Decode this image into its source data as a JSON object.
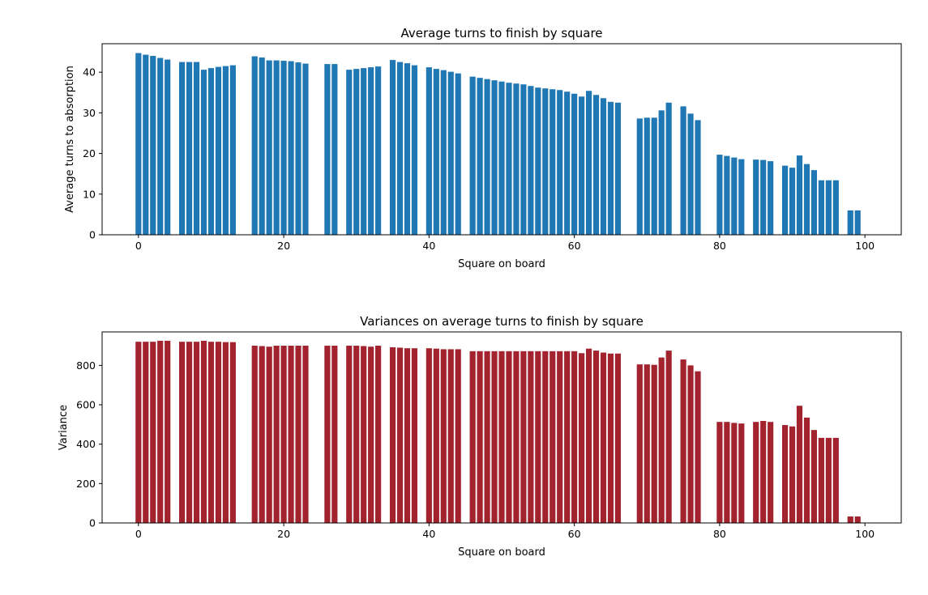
{
  "chart_data": [
    {
      "type": "bar",
      "title": "Average turns to finish by square",
      "xlabel": "Square on board",
      "ylabel": "Average turns to absorption",
      "xlim": [
        -5,
        105
      ],
      "ylim": [
        0,
        47
      ],
      "xticks": [
        0,
        20,
        40,
        60,
        80,
        100
      ],
      "yticks": [
        0,
        10,
        20,
        30,
        40
      ],
      "grid": false,
      "color": "#1f77b4",
      "x": [
        0,
        1,
        2,
        3,
        4,
        6,
        7,
        8,
        9,
        10,
        11,
        12,
        13,
        16,
        17,
        18,
        19,
        20,
        21,
        22,
        23,
        26,
        27,
        29,
        30,
        31,
        32,
        33,
        35,
        36,
        37,
        38,
        40,
        41,
        42,
        43,
        44,
        46,
        47,
        48,
        49,
        50,
        51,
        52,
        53,
        54,
        55,
        56,
        57,
        58,
        59,
        60,
        61,
        62,
        63,
        64,
        65,
        66,
        69,
        70,
        71,
        72,
        73,
        75,
        76,
        77,
        80,
        81,
        82,
        83,
        85,
        86,
        87,
        89,
        90,
        91,
        92,
        93,
        94,
        95,
        96,
        98,
        99
      ],
      "values": [
        44.7,
        44.3,
        44.0,
        43.5,
        43.1,
        42.5,
        42.5,
        42.5,
        40.6,
        41.0,
        41.3,
        41.5,
        41.7,
        43.9,
        43.6,
        42.9,
        42.9,
        42.8,
        42.7,
        42.4,
        42.1,
        42.0,
        42.0,
        40.6,
        40.8,
        41.0,
        41.2,
        41.4,
        43.0,
        42.5,
        42.2,
        41.7,
        41.2,
        40.8,
        40.5,
        40.1,
        39.7,
        38.9,
        38.6,
        38.3,
        38.0,
        37.7,
        37.4,
        37.2,
        37.0,
        36.6,
        36.2,
        36.0,
        35.8,
        35.6,
        35.2,
        34.7,
        34.0,
        35.4,
        34.4,
        33.6,
        32.7,
        32.5,
        28.6,
        28.8,
        28.8,
        30.6,
        32.5,
        31.6,
        29.8,
        28.2,
        19.7,
        19.4,
        19.0,
        18.6,
        18.5,
        18.4,
        18.1,
        17.0,
        16.5,
        19.5,
        17.4,
        15.9,
        13.4,
        13.4,
        13.4,
        6.0,
        6.0
      ]
    },
    {
      "type": "bar",
      "title": "Variances on average turns to finish by square",
      "xlabel": "Square on board",
      "ylabel": "Variance",
      "xlim": [
        -5,
        105
      ],
      "ylim": [
        0,
        970
      ],
      "xticks": [
        0,
        20,
        40,
        60,
        80,
        100
      ],
      "yticks": [
        0,
        200,
        400,
        600,
        800
      ],
      "grid": false,
      "color": "#a2222e",
      "x": [
        0,
        1,
        2,
        3,
        4,
        6,
        7,
        8,
        9,
        10,
        11,
        12,
        13,
        16,
        17,
        18,
        19,
        20,
        21,
        22,
        23,
        26,
        27,
        29,
        30,
        31,
        32,
        33,
        35,
        36,
        37,
        38,
        40,
        41,
        42,
        43,
        44,
        46,
        47,
        48,
        49,
        50,
        51,
        52,
        53,
        54,
        55,
        56,
        57,
        58,
        59,
        60,
        61,
        62,
        63,
        64,
        65,
        66,
        69,
        70,
        71,
        72,
        73,
        75,
        76,
        77,
        80,
        81,
        82,
        83,
        85,
        86,
        87,
        89,
        90,
        91,
        92,
        93,
        94,
        95,
        96,
        98,
        99
      ],
      "values": [
        920,
        920,
        920,
        925,
        925,
        920,
        920,
        920,
        925,
        920,
        920,
        918,
        918,
        900,
        898,
        895,
        900,
        900,
        900,
        900,
        900,
        900,
        900,
        900,
        900,
        898,
        895,
        900,
        892,
        890,
        887,
        887,
        887,
        885,
        882,
        882,
        882,
        872,
        872,
        872,
        872,
        872,
        872,
        872,
        872,
        872,
        872,
        872,
        872,
        872,
        872,
        872,
        862,
        885,
        875,
        865,
        860,
        860,
        805,
        805,
        803,
        840,
        875,
        830,
        800,
        770,
        513,
        513,
        508,
        505,
        513,
        518,
        513,
        497,
        490,
        595,
        535,
        472,
        432,
        432,
        432,
        33,
        33
      ]
    }
  ]
}
